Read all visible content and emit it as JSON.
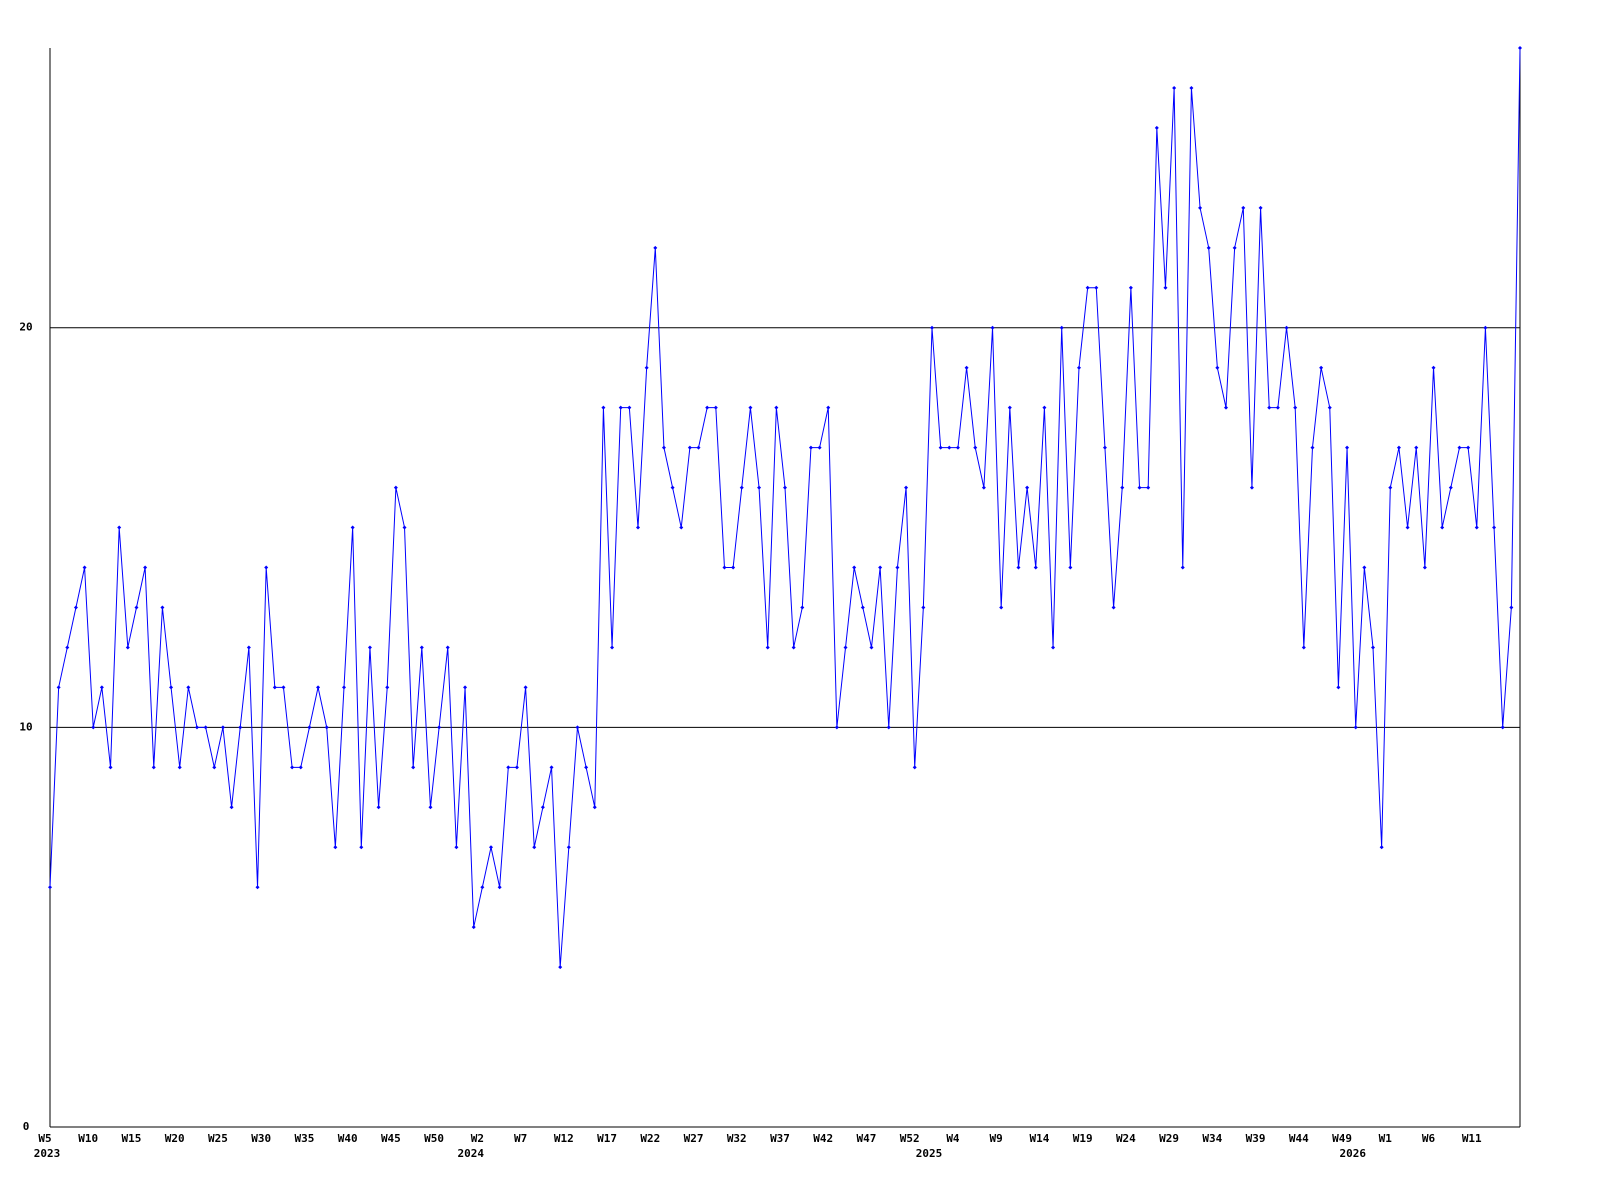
{
  "chart_data": {
    "type": "line",
    "categories": [
      "W5",
      null,
      null,
      null,
      null,
      "W10",
      null,
      null,
      null,
      null,
      "W15",
      null,
      null,
      null,
      null,
      "W20",
      null,
      null,
      null,
      null,
      "W25",
      null,
      null,
      null,
      null,
      "W30",
      null,
      null,
      null,
      null,
      "W35",
      null,
      null,
      null,
      null,
      "W40",
      null,
      null,
      null,
      null,
      "W45",
      null,
      null,
      null,
      null,
      "W50",
      null,
      null,
      null,
      null,
      "W2",
      null,
      null,
      null,
      null,
      "W7",
      null,
      null,
      null,
      null,
      "W12",
      null,
      null,
      null,
      null,
      "W17",
      null,
      null,
      null,
      null,
      "W22",
      null,
      null,
      null,
      null,
      "W27",
      null,
      null,
      null,
      null,
      "W32",
      null,
      null,
      null,
      null,
      "W37",
      null,
      null,
      null,
      null,
      "W42",
      null,
      null,
      null,
      null,
      "W47",
      null,
      null,
      null,
      null,
      "W52",
      null,
      null,
      null,
      null,
      "W4",
      null,
      null,
      null,
      null,
      "W9",
      null,
      null,
      null,
      null,
      "W14",
      null,
      null,
      null,
      null,
      "W19",
      null,
      null,
      null,
      null,
      "W24",
      null,
      null,
      null,
      null,
      "W29",
      null,
      null,
      null,
      null,
      "W34",
      null,
      null,
      null,
      null,
      "W39",
      null,
      null,
      null,
      null,
      "W44",
      null,
      null,
      null,
      null,
      "W49",
      null,
      null,
      null,
      null,
      "W1",
      null,
      null,
      null,
      null,
      "W6",
      null,
      null,
      null,
      null,
      "W11",
      null,
      null,
      null,
      null,
      null
    ],
    "year_categories": [
      "2023",
      null,
      null,
      null,
      null,
      null,
      null,
      null,
      null,
      null,
      null,
      null,
      null,
      null,
      null,
      null,
      null,
      null,
      null,
      null,
      null,
      null,
      null,
      null,
      null,
      null,
      null,
      null,
      null,
      null,
      null,
      null,
      null,
      null,
      null,
      null,
      null,
      null,
      null,
      null,
      null,
      null,
      null,
      null,
      null,
      null,
      null,
      null,
      null,
      "2024",
      null,
      null,
      null,
      null,
      null,
      null,
      null,
      null,
      null,
      null,
      null,
      null,
      null,
      null,
      null,
      null,
      null,
      null,
      null,
      null,
      null,
      null,
      null,
      null,
      null,
      null,
      null,
      null,
      null,
      null,
      null,
      null,
      null,
      null,
      null,
      null,
      null,
      null,
      null,
      null,
      null,
      null,
      null,
      null,
      null,
      null,
      null,
      null,
      null,
      null,
      null,
      null,
      "2025",
      null,
      null,
      null,
      null,
      null,
      null,
      null,
      null,
      null,
      null,
      null,
      null,
      null,
      null,
      null,
      null,
      null,
      null,
      null,
      null,
      null,
      null,
      null,
      null,
      null,
      null,
      null,
      null,
      null,
      null,
      null,
      null,
      null,
      null,
      null,
      null,
      null,
      null,
      null,
      null,
      null,
      null,
      null,
      null,
      null,
      null,
      null,
      null,
      "2026",
      null,
      null,
      null,
      null,
      null,
      null,
      null,
      null,
      null,
      null,
      null,
      null,
      null,
      null,
      null
    ],
    "series": [
      {
        "color": "#0000ff",
        "values": [
          6,
          11,
          12,
          13,
          14,
          10,
          11,
          9,
          15,
          12,
          13,
          14,
          9,
          13,
          11,
          9,
          11,
          10,
          10,
          9,
          10,
          8,
          10,
          12,
          6,
          14,
          11,
          11,
          9,
          9,
          10,
          11,
          10,
          7,
          11,
          15,
          7,
          12,
          8,
          11,
          16,
          15,
          9,
          12,
          8,
          10,
          12,
          7,
          11,
          5,
          6,
          7,
          6,
          9,
          9,
          11,
          7,
          8,
          9,
          4,
          7,
          10,
          9,
          8,
          18,
          12,
          18,
          18,
          15,
          19,
          22,
          17,
          16,
          15,
          17,
          17,
          18,
          18,
          14,
          14,
          16,
          18,
          16,
          12,
          18,
          16,
          12,
          13,
          17,
          17,
          18,
          10,
          12,
          14,
          13,
          12,
          14,
          10,
          14,
          16,
          9,
          13,
          20,
          17,
          17,
          17,
          19,
          17,
          16,
          20,
          13,
          18,
          14,
          16,
          14,
          18,
          12,
          20,
          14,
          19,
          21,
          21,
          17,
          13,
          16,
          21,
          16,
          16,
          25,
          21,
          26,
          14,
          26,
          23,
          22,
          19,
          18,
          22,
          23,
          16,
          23,
          18,
          18,
          20,
          18,
          12,
          17,
          19,
          18,
          11,
          17,
          10,
          14,
          12,
          7,
          16,
          17,
          15,
          17,
          14,
          19,
          15,
          16,
          17,
          17,
          15,
          20,
          15,
          10,
          13,
          27
        ]
      }
    ],
    "ylim": [
      0,
      27
    ],
    "yticks": [
      0,
      10,
      20
    ],
    "grid": true
  }
}
